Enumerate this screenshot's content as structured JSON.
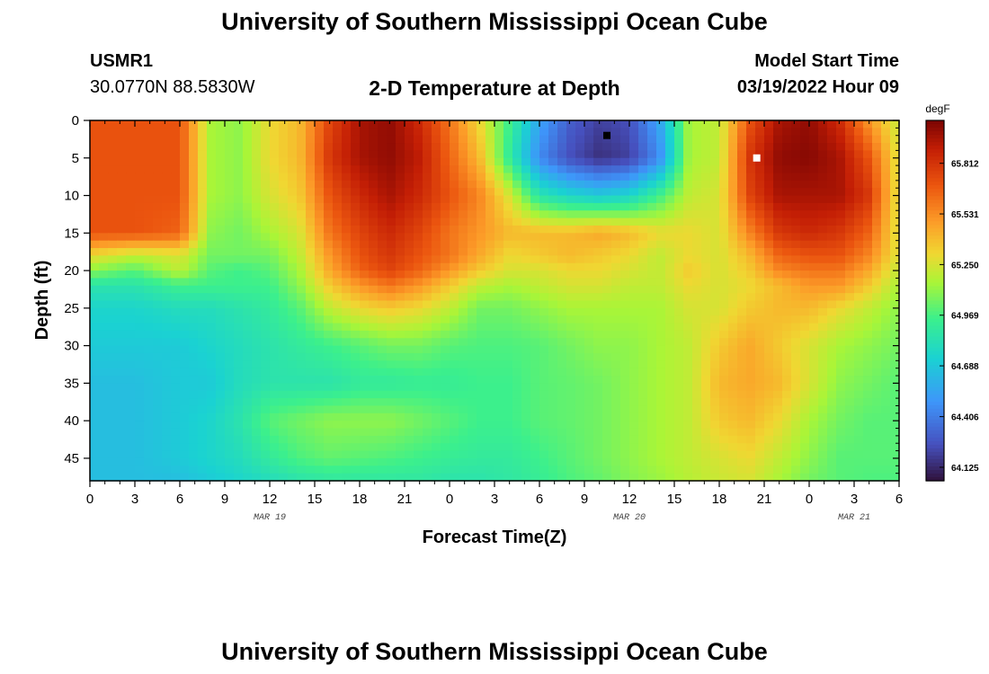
{
  "page": {
    "title": "University of Southern Mississippi Ocean Cube",
    "bottom_title": "University of Southern Mississippi Ocean Cube"
  },
  "header": {
    "station_id": "USMR1",
    "coordinates": "30.0770N  88.5830W",
    "plot_title": "2-D Temperature at Depth",
    "model_start_label": "Model Start Time",
    "model_start_value": "03/19/2022 Hour 09"
  },
  "chart_data": {
    "type": "heatmap",
    "title": "2-D Temperature at Depth",
    "xlabel": "Forecast Time(Z)",
    "ylabel": "Depth (ft)",
    "x_ticks": [
      "0",
      "3",
      "6",
      "9",
      "12",
      "15",
      "18",
      "21",
      "0",
      "3",
      "6",
      "9",
      "12",
      "15",
      "18",
      "21",
      "0",
      "3",
      "6"
    ],
    "x_range_hours": [
      0,
      54
    ],
    "date_labels": [
      {
        "text": "MAR 19",
        "hour": 12
      },
      {
        "text": "MAR 20",
        "hour": 36
      },
      {
        "text": "MAR 21",
        "hour": 51
      }
    ],
    "y_ticks": [
      "0",
      "5",
      "10",
      "15",
      "20",
      "25",
      "30",
      "35",
      "40",
      "45"
    ],
    "y_range_ft": [
      0,
      48
    ],
    "colorbar": {
      "unit": "degF",
      "ticks": [
        "65.812",
        "65.531",
        "65.250",
        "64.969",
        "64.688",
        "64.406",
        "64.125"
      ],
      "range": [
        64.05,
        66.05
      ]
    },
    "markers": [
      {
        "hour": 34.5,
        "depth": 2,
        "color": "#000000",
        "meaning": "minimum"
      },
      {
        "hour": 44.5,
        "depth": 5,
        "color": "#ffffff",
        "meaning": "maximum"
      }
    ],
    "field_control_points": {
      "note": "approximate temperature (degF) read from colors",
      "hours": [
        0,
        3,
        6,
        8,
        10,
        12,
        14,
        16,
        18,
        20,
        22,
        24,
        26,
        28,
        30,
        32,
        34,
        36,
        38,
        40,
        42,
        44,
        46,
        48,
        50,
        52,
        54
      ],
      "depths": [
        0,
        5,
        10,
        15,
        18,
        20,
        22,
        25,
        30,
        35,
        40,
        45,
        48
      ],
      "values": [
        [
          65.7,
          65.7,
          65.7,
          65.15,
          65.1,
          65.3,
          65.4,
          65.75,
          65.95,
          66.0,
          65.85,
          65.6,
          65.3,
          64.95,
          64.55,
          64.3,
          64.2,
          64.25,
          64.55,
          65.15,
          65.2,
          65.7,
          65.95,
          66.0,
          65.85,
          65.5,
          65.2
        ],
        [
          65.7,
          65.7,
          65.7,
          65.15,
          65.1,
          65.3,
          65.4,
          65.8,
          65.95,
          66.0,
          65.9,
          65.65,
          65.4,
          64.9,
          64.45,
          64.25,
          64.15,
          64.2,
          64.45,
          65.15,
          65.2,
          65.8,
          66.0,
          66.02,
          65.95,
          65.7,
          65.25
        ],
        [
          65.7,
          65.7,
          65.7,
          65.15,
          65.1,
          65.25,
          65.35,
          65.7,
          65.85,
          65.95,
          65.85,
          65.7,
          65.55,
          65.25,
          64.85,
          64.75,
          64.7,
          64.75,
          64.95,
          65.2,
          65.25,
          65.75,
          65.95,
          65.95,
          65.95,
          65.8,
          65.25
        ],
        [
          65.7,
          65.7,
          65.65,
          65.1,
          65.05,
          65.15,
          65.25,
          65.6,
          65.75,
          65.85,
          65.75,
          65.6,
          65.5,
          65.4,
          65.4,
          65.4,
          65.45,
          65.4,
          65.3,
          65.3,
          65.25,
          65.55,
          65.8,
          65.85,
          65.8,
          65.65,
          65.25
        ],
        [
          65.3,
          65.2,
          65.25,
          65.05,
          65.05,
          65.05,
          65.2,
          65.5,
          65.7,
          65.8,
          65.7,
          65.6,
          65.45,
          65.3,
          65.35,
          65.4,
          65.35,
          65.3,
          65.2,
          65.3,
          65.25,
          65.4,
          65.65,
          65.7,
          65.7,
          65.55,
          65.25
        ],
        [
          65.1,
          65.0,
          65.2,
          65.0,
          64.95,
          65.0,
          65.15,
          65.45,
          65.65,
          65.75,
          65.65,
          65.5,
          65.35,
          65.25,
          65.25,
          65.3,
          65.3,
          65.25,
          65.2,
          65.35,
          65.25,
          65.35,
          65.55,
          65.6,
          65.6,
          65.45,
          65.2
        ],
        [
          64.85,
          64.85,
          64.95,
          64.95,
          64.95,
          64.95,
          65.1,
          65.35,
          65.5,
          65.6,
          65.5,
          65.35,
          65.2,
          65.15,
          65.2,
          65.25,
          65.25,
          65.2,
          65.2,
          65.3,
          65.25,
          65.3,
          65.4,
          65.5,
          65.5,
          65.35,
          65.15
        ],
        [
          64.75,
          64.75,
          64.8,
          64.8,
          64.85,
          64.9,
          65.0,
          65.2,
          65.3,
          65.35,
          65.3,
          65.2,
          65.05,
          65.05,
          65.1,
          65.15,
          65.15,
          65.15,
          65.15,
          65.25,
          65.25,
          65.35,
          65.4,
          65.4,
          65.3,
          65.2,
          65.1
        ],
        [
          64.7,
          64.7,
          64.7,
          64.75,
          64.8,
          64.85,
          64.9,
          64.95,
          65.0,
          65.05,
          65.05,
          65.0,
          64.98,
          64.98,
          65.0,
          65.05,
          65.1,
          65.1,
          65.15,
          65.2,
          65.35,
          65.45,
          65.35,
          65.25,
          65.15,
          65.1,
          65.05
        ],
        [
          64.65,
          64.65,
          64.7,
          64.7,
          64.8,
          64.85,
          64.85,
          64.85,
          64.9,
          64.9,
          64.92,
          64.92,
          64.95,
          64.95,
          65.0,
          65.02,
          65.05,
          65.1,
          65.15,
          65.2,
          65.4,
          65.45,
          65.4,
          65.25,
          65.1,
          65.05,
          65.0
        ],
        [
          64.65,
          64.65,
          64.7,
          64.75,
          64.85,
          65.0,
          65.05,
          65.1,
          65.1,
          65.1,
          65.05,
          65.0,
          64.95,
          64.95,
          65.0,
          65.02,
          65.05,
          65.1,
          65.15,
          65.2,
          65.35,
          65.4,
          65.3,
          65.15,
          65.05,
          65.0,
          65.0
        ],
        [
          64.65,
          64.65,
          64.7,
          64.75,
          64.8,
          64.9,
          64.98,
          65.02,
          65.0,
          64.98,
          64.95,
          64.92,
          64.9,
          64.9,
          64.95,
          65.0,
          65.05,
          65.1,
          65.15,
          65.2,
          65.25,
          65.3,
          65.2,
          65.1,
          65.0,
          65.0,
          65.0
        ],
        [
          64.65,
          64.65,
          64.65,
          64.7,
          64.75,
          64.8,
          64.85,
          64.88,
          64.88,
          64.88,
          64.88,
          64.85,
          64.85,
          64.88,
          64.92,
          64.98,
          65.02,
          65.08,
          65.12,
          65.18,
          65.22,
          65.25,
          65.15,
          65.05,
          65.0,
          64.98,
          64.98
        ]
      ]
    }
  }
}
